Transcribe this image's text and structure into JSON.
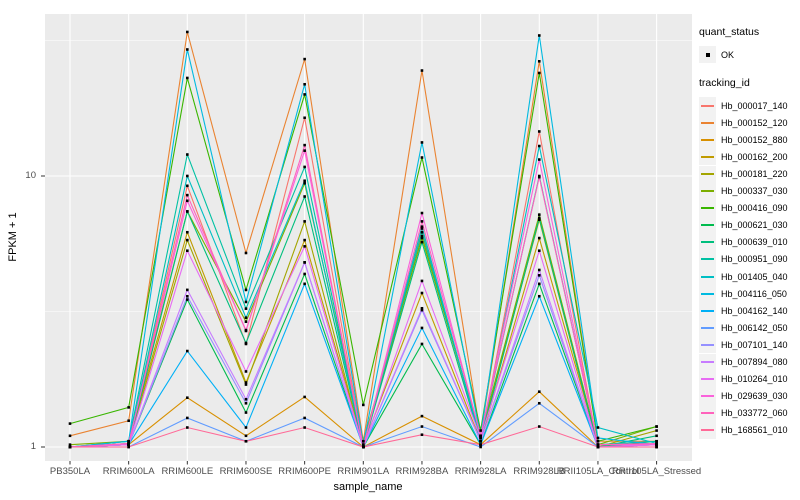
{
  "figure": {
    "background": "#FFFFFF",
    "panel_background": "#EBEBEB",
    "grid_color": "#FFFFFF",
    "point_color": "#000000",
    "tick_color": "#333333",
    "tick_text_color": "#4D4D4D"
  },
  "axes": {
    "x_title": "sample_name",
    "y_title": "FPKM + 1",
    "y_ticks": [
      {
        "label": "1",
        "value": 1
      },
      {
        "label": "10",
        "value": 10
      }
    ]
  },
  "legend": {
    "quant_status_title": "quant_status",
    "quant_status_items": [
      {
        "label": "OK"
      }
    ],
    "tracking_title": "tracking_id"
  },
  "chart_data": {
    "type": "line",
    "x_type": "categorical",
    "y_scale": "log10",
    "xlabel": "sample_name",
    "ylabel": "FPKM + 1",
    "ylim": [
      0.93,
      38
    ],
    "grid": true,
    "legend_position": "right",
    "minor_breaks": [
      3.162,
      31.62
    ],
    "categories": [
      "PB350LA",
      "RRIM600LA",
      "RRIM600LE",
      "RRIM600SE",
      "RRIM600PE",
      "RRIM901LA",
      "RRIM928BA",
      "RRIM928LA",
      "RRIM928LB",
      "RRII105LA_Control",
      "RRII105LA_Stressed"
    ],
    "series": [
      {
        "name": "Hb_000017_140",
        "color": "#F8766D",
        "values": [
          1.0,
          1.02,
          9.2,
          2.4,
          16.4,
          1.0,
          6.4,
          1.05,
          14.6,
          1.0,
          1.02
        ]
      },
      {
        "name": "Hb_000152_120",
        "color": "#EA8331",
        "values": [
          1.1,
          1.25,
          34.0,
          5.2,
          27.0,
          1.05,
          24.5,
          1.1,
          26.5,
          1.05,
          1.05
        ]
      },
      {
        "name": "Hb_000152_880",
        "color": "#D89000",
        "values": [
          1.0,
          1.02,
          1.52,
          1.1,
          1.53,
          1.0,
          1.3,
          1.02,
          1.6,
          1.0,
          1.0
        ]
      },
      {
        "name": "Hb_000162_200",
        "color": "#C09B00",
        "values": [
          1.0,
          1.05,
          6.2,
          1.73,
          5.8,
          1.02,
          3.7,
          1.05,
          5.9,
          1.02,
          1.02
        ]
      },
      {
        "name": "Hb_000181_220",
        "color": "#A3A500",
        "values": [
          1.0,
          1.03,
          5.8,
          1.7,
          6.8,
          1.0,
          6.0,
          1.08,
          6.9,
          1.0,
          1.15
        ]
      },
      {
        "name": "Hb_000337_030",
        "color": "#7CAE00",
        "values": [
          1.02,
          1.05,
          7.4,
          2.9,
          9.4,
          1.05,
          5.9,
          1.1,
          7.2,
          1.02,
          1.19
        ]
      },
      {
        "name": "Hb_000416_090",
        "color": "#39B600",
        "values": [
          1.22,
          1.4,
          23.0,
          3.8,
          20.0,
          1.43,
          11.7,
          1.15,
          24.0,
          1.05,
          1.19
        ]
      },
      {
        "name": "Hb_000621_030",
        "color": "#00BB4E",
        "values": [
          1.0,
          1.02,
          3.5,
          1.34,
          4.35,
          1.0,
          2.4,
          1.02,
          4.0,
          1.0,
          1.05
        ]
      },
      {
        "name": "Hb_000639_010",
        "color": "#00BF7D",
        "values": [
          1.0,
          1.02,
          7.4,
          2.42,
          8.4,
          1.0,
          5.7,
          1.05,
          7.0,
          1.0,
          1.1
        ]
      },
      {
        "name": "Hb_000951_090",
        "color": "#00C1A3",
        "values": [
          1.0,
          1.05,
          12.0,
          3.24,
          10.8,
          1.02,
          6.2,
          1.08,
          10.0,
          1.02,
          1.05
        ]
      },
      {
        "name": "Hb_001405_040",
        "color": "#00BFC4",
        "values": [
          1.0,
          1.03,
          10.0,
          3.0,
          9.6,
          1.0,
          6.5,
          1.05,
          12.9,
          1.18,
          1.03
        ]
      },
      {
        "name": "Hb_004116_050",
        "color": "#00BAE0",
        "values": [
          1.0,
          1.05,
          29.3,
          3.43,
          21.8,
          1.02,
          13.3,
          1.1,
          33.0,
          1.08,
          1.02
        ]
      },
      {
        "name": "Hb_004162_140",
        "color": "#00B0F6",
        "values": [
          1.0,
          1.02,
          2.26,
          1.18,
          4.0,
          1.0,
          2.75,
          1.02,
          3.6,
          1.0,
          1.02
        ]
      },
      {
        "name": "Hb_006142_050",
        "color": "#619CFF",
        "values": [
          1.0,
          1.0,
          1.28,
          1.05,
          1.28,
          1.0,
          1.19,
          1.0,
          1.45,
          1.0,
          1.0
        ]
      },
      {
        "name": "Hb_007101_140",
        "color": "#9590FF",
        "values": [
          1.0,
          1.02,
          3.6,
          1.45,
          4.8,
          1.0,
          3.2,
          1.05,
          4.3,
          1.0,
          1.02
        ]
      },
      {
        "name": "Hb_007894_080",
        "color": "#C77CFF",
        "values": [
          1.0,
          1.02,
          3.8,
          1.5,
          4.8,
          1.0,
          3.25,
          1.05,
          4.5,
          1.0,
          1.02
        ]
      },
      {
        "name": "Hb_010264_010",
        "color": "#E76BF3",
        "values": [
          1.0,
          1.02,
          5.3,
          1.9,
          5.5,
          1.0,
          4.1,
          1.08,
          5.3,
          1.0,
          1.02
        ]
      },
      {
        "name": "Hb_029639_030",
        "color": "#FA62DB",
        "values": [
          1.0,
          1.03,
          8.1,
          2.7,
          12.4,
          1.0,
          7.3,
          1.1,
          11.5,
          1.02,
          1.02
        ]
      },
      {
        "name": "Hb_033772_060",
        "color": "#FF62BC",
        "values": [
          1.0,
          1.03,
          8.5,
          2.68,
          13.0,
          1.0,
          6.8,
          1.1,
          9.9,
          1.02,
          1.03
        ]
      },
      {
        "name": "Hb_168561_010",
        "color": "#FF6A98",
        "values": [
          1.0,
          1.0,
          1.18,
          1.05,
          1.18,
          1.0,
          1.11,
          1.02,
          1.19,
          1.0,
          1.0
        ]
      }
    ]
  }
}
